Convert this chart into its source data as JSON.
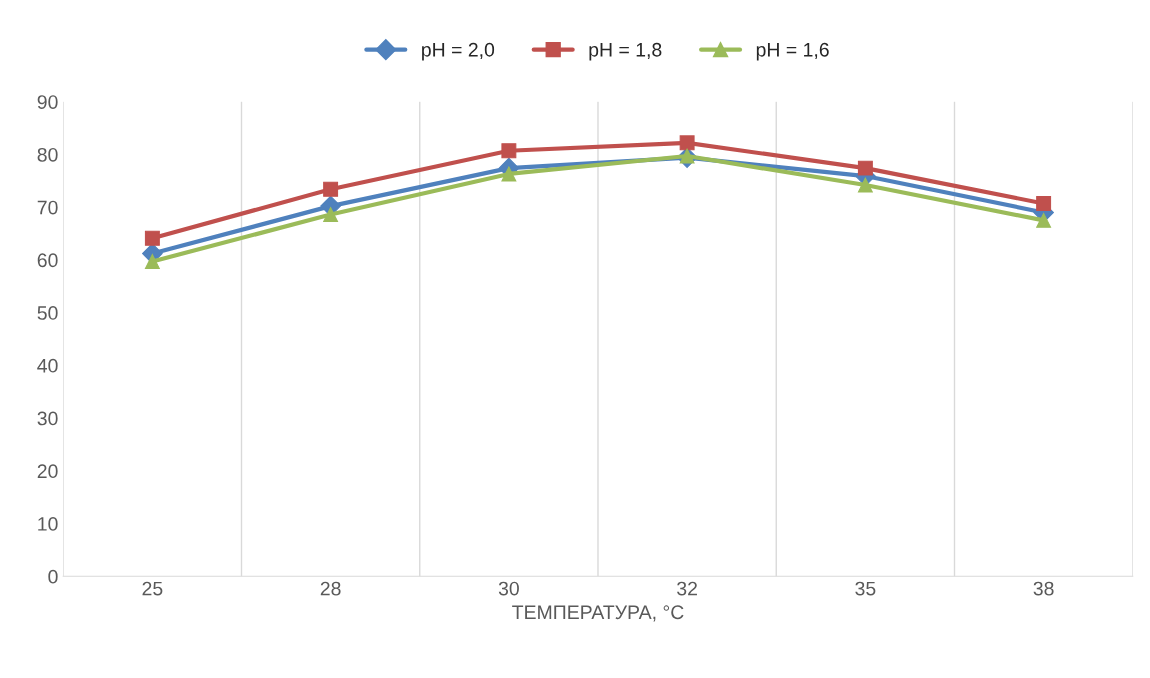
{
  "chart_data": {
    "type": "line",
    "xlabel": "ТЕМПЕРАТУРА, °C",
    "categories": [
      "25",
      "28",
      "30",
      "32",
      "35",
      "38"
    ],
    "series": [
      {
        "name": "pH = 2,0",
        "color": "#4f81bd",
        "marker": "diamond",
        "values": [
          61.2,
          70.2,
          77.4,
          79.4,
          75.9,
          69.0
        ]
      },
      {
        "name": "pH = 1,8",
        "color": "#c0504d",
        "marker": "square",
        "values": [
          64.1,
          73.4,
          80.7,
          82.2,
          77.4,
          70.7
        ]
      },
      {
        "name": "pH = 1,6",
        "color": "#9bbb59",
        "marker": "triangle",
        "values": [
          59.7,
          68.6,
          76.3,
          79.7,
          74.2,
          67.5
        ]
      }
    ],
    "ylim": [
      0,
      90
    ],
    "yticks": [
      0,
      10,
      20,
      30,
      40,
      50,
      60,
      70,
      80,
      90
    ],
    "grid": "x",
    "legend": "top"
  }
}
